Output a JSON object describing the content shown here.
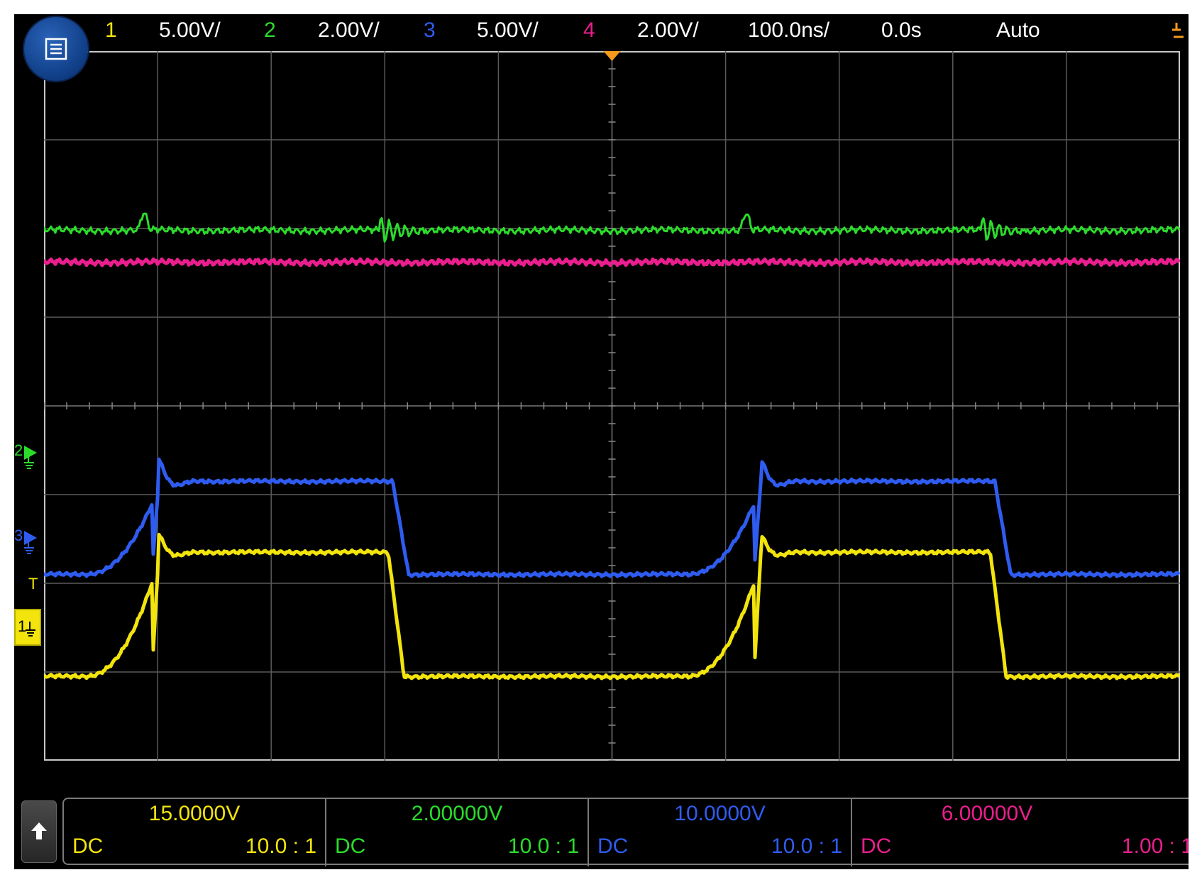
{
  "colors": {
    "ch1": "#f2e40c",
    "ch2": "#2bdc2b",
    "ch3": "#2f5cf0",
    "ch4": "#ea1e8e",
    "text": "#ffffff",
    "trigger": "#f59a1c",
    "grid": "#5a5a5a"
  },
  "topbar": {
    "menu_icon": "menu-icon",
    "ch1_num": "1",
    "ch1_scale": "5.00V/",
    "ch2_num": "2",
    "ch2_scale": "2.00V/",
    "ch3_num": "3",
    "ch3_scale": "5.00V/",
    "ch4_num": "4",
    "ch4_scale": "2.00V/",
    "timebase": "100.0ns/",
    "delay": "0.0s",
    "trigger_mode": "Auto",
    "trigger_icon": "trigger-edge-icon"
  },
  "markers": {
    "ch2": "2",
    "ch3": "3",
    "ch1": "1",
    "trigger": "T"
  },
  "channels": [
    {
      "offset": "15.0000V",
      "coupling": "DC",
      "probe": "10.0 : 1"
    },
    {
      "offset": "2.00000V",
      "coupling": "DC",
      "probe": "10.0 : 1"
    },
    {
      "offset": "10.0000V",
      "coupling": "DC",
      "probe": "10.0 : 1"
    },
    {
      "offset": "6.00000V",
      "coupling": "DC",
      "probe": "1.00 : 1"
    }
  ],
  "chart_data": {
    "type": "line",
    "title": "",
    "xlabel": "",
    "ylabel": "",
    "x_unit": "ns",
    "xlim": [
      -500,
      500
    ],
    "ylim": [
      -4,
      4
    ],
    "grid": true,
    "y_unit": "divisions",
    "period_ns": 530,
    "series": [
      {
        "name": "1",
        "low_div": -3.05,
        "high_div": -1.65,
        "x": [
          -500,
          -440,
          -420,
          -410,
          -405,
          -390,
          -360,
          -310,
          -240,
          -225,
          -220,
          -210,
          -200,
          -170,
          -150,
          -130,
          -110,
          -100,
          -95,
          -80,
          -50,
          30,
          35,
          40,
          55,
          70,
          100,
          150
        ],
        "y": [
          -3.05,
          -3.05,
          -2.9,
          -2.4,
          -1.6,
          -1.65,
          -1.62,
          -1.65,
          -1.7,
          -1.8,
          -2.5,
          -2.9,
          -3.05,
          -3.05,
          -3.05,
          -3.05,
          -2.9,
          -2.4,
          -1.6,
          -1.65,
          -1.65,
          -1.7,
          -1.8,
          -2.5,
          -2.9,
          -3.05,
          -3.05,
          -3.05
        ]
      },
      {
        "name": "2",
        "baseline_div": 1.98,
        "x": [
          -500,
          500
        ],
        "y": [
          1.98,
          1.98
        ]
      },
      {
        "name": "3",
        "low_div": -1.9,
        "high_div": -0.85,
        "x": [
          -500,
          -440,
          -420,
          -410,
          -400,
          -380,
          -310,
          -240,
          -230,
          -215,
          -200,
          -130,
          -110,
          -100,
          -90,
          -70,
          30,
          40,
          55,
          70,
          150
        ],
        "y": [
          -1.9,
          -1.9,
          -1.6,
          -0.6,
          -0.75,
          -0.85,
          -0.85,
          -0.85,
          -1.0,
          -1.8,
          -1.9,
          -1.9,
          -1.6,
          -0.6,
          -0.75,
          -0.85,
          -0.85,
          -1.0,
          -1.8,
          -1.9,
          -1.9
        ]
      },
      {
        "name": "4",
        "baseline_div": 1.62,
        "x": [
          -500,
          500
        ],
        "y": [
          1.62,
          1.62
        ]
      }
    ]
  }
}
